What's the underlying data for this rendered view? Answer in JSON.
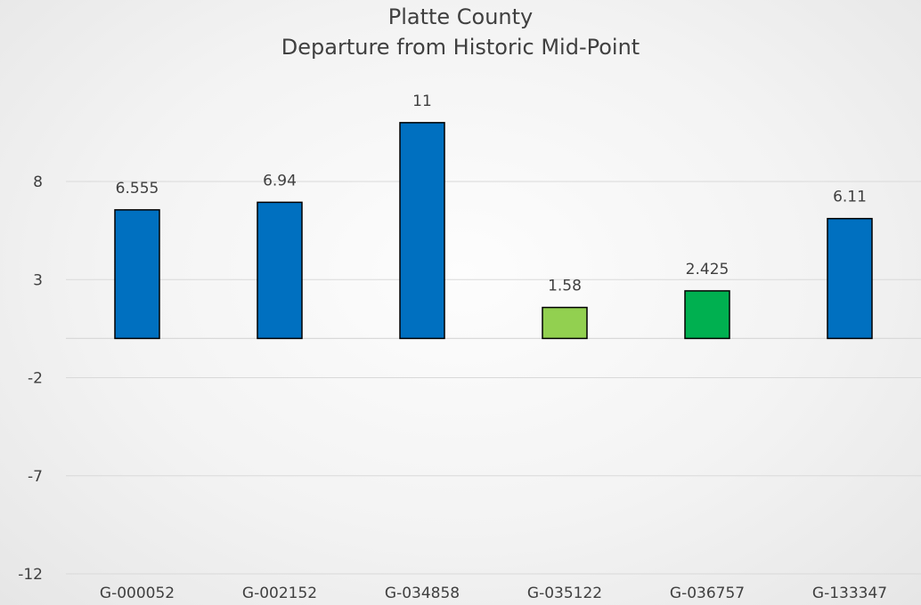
{
  "chart_data": {
    "type": "bar",
    "title": "Platte County",
    "subtitle": "Departure from Historic Mid-Point",
    "categories": [
      "G-000052",
      "G-002152",
      "G-034858",
      "G-035122",
      "G-036757",
      "G-133347"
    ],
    "values": [
      6.555,
      6.94,
      11,
      1.58,
      2.425,
      6.11
    ],
    "data_labels": [
      "6.555",
      "6.94",
      "11",
      "1.58",
      "2.425",
      "6.11"
    ],
    "bar_colors": [
      "#0070c0",
      "#0070c0",
      "#0070c0",
      "#92d050",
      "#00b050",
      "#0070c0"
    ],
    "bar_outline_color": "#000000",
    "yticks": [
      -12,
      -7,
      -2,
      3,
      8
    ],
    "ylim": [
      -12,
      13
    ],
    "grid": true,
    "legend": "none",
    "xlabel": "",
    "ylabel": ""
  }
}
